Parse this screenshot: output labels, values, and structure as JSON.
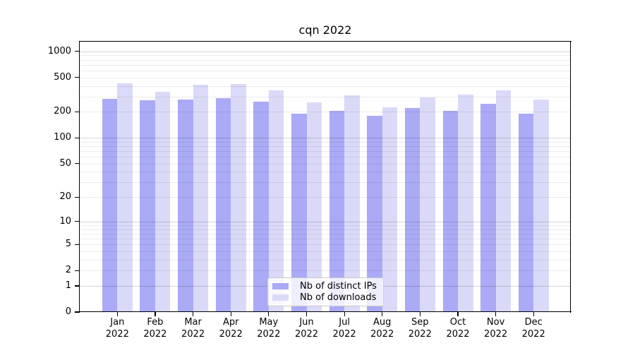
{
  "chart_data": {
    "type": "bar",
    "title": "cqn 2022",
    "categories": [
      "Jan",
      "Feb",
      "Mar",
      "Apr",
      "May",
      "Jun",
      "Jul",
      "Aug",
      "Sep",
      "Oct",
      "Nov",
      "Dec"
    ],
    "category_year": "2022",
    "series": [
      {
        "name": "Nb of distinct IPs",
        "color": "#aaaaf6",
        "values": [
          284,
          271,
          280,
          286,
          264,
          192,
          206,
          179,
          220,
          204,
          248,
          191
        ]
      },
      {
        "name": "Nb of downloads",
        "color": "#dadaf8",
        "values": [
          428,
          342,
          411,
          420,
          354,
          260,
          310,
          224,
          292,
          314,
          356,
          277
        ]
      }
    ],
    "yscale": "log1p",
    "y_ticks": [
      0,
      1,
      2,
      5,
      10,
      20,
      50,
      100,
      200,
      500,
      1000
    ],
    "ylim": [
      0,
      1290
    ],
    "grid": true,
    "legend_position": "lower center",
    "colors": {
      "major_grid": "rgba(0,0,0,0.17)",
      "minor_grid": "rgba(0,0,0,0.075)",
      "spine": "#000000",
      "background": "#ffffff"
    }
  }
}
